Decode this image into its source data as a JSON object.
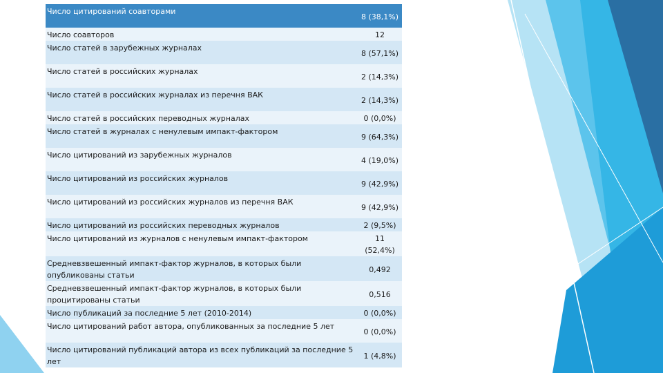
{
  "colors": {
    "header_bg": "#3b89c5",
    "row_dark": "#d4e7f5",
    "row_light": "#eaf3fa",
    "accent_light": "#8fd2f0",
    "accent_mid": "#35b6e6",
    "accent_dark": "#2a6fa3"
  },
  "rows": [
    {
      "label": "Число цитирований соавторами",
      "value": "8 (38,1%)"
    },
    {
      "label": "Число соавторов",
      "value": "12"
    },
    {
      "label": "Число статей в зарубежных журналах",
      "value": "8 (57,1%)"
    },
    {
      "label": "Число статей в российских журналах",
      "value": "2 (14,3%)"
    },
    {
      "label": "Число статей в российских журналах из перечня ВАК",
      "value": "2 (14,3%)"
    },
    {
      "label": "Число статей в российских переводных журналах",
      "value": "0 (0,0%)"
    },
    {
      "label": "Число статей в журналах с ненулевым импакт-фактором",
      "value": "9 (64,3%)"
    },
    {
      "label": "Число цитирований из зарубежных журналов",
      "value": "4 (19,0%)"
    },
    {
      "label": "Число цитирований из российских журналов",
      "value": "9 (42,9%)"
    },
    {
      "label": "Число цитирований из российских журналов из перечня ВАК",
      "value": "9 (42,9%)"
    },
    {
      "label": "Число цитирований из российских переводных журналов",
      "value": "2 (9,5%)"
    },
    {
      "label": "Число цитирований из журналов с ненулевым импакт-фактором",
      "value": "11 (52,4%)"
    },
    {
      "label": "Средневзвешенный импакт-фактор журналов, в которых были опубликованы статьи",
      "value": "0,492"
    },
    {
      "label": "Средневзвешенный импакт-фактор журналов, в которых были процитированы статьи",
      "value": "0,516"
    },
    {
      "label": "Число публикаций за последние 5 лет (2010-2014)",
      "value": "0 (0,0%)"
    },
    {
      "label": "Число цитирований работ автора, опубликованных за последние 5 лет",
      "value": "0 (0,0%)"
    },
    {
      "label": "Число цитирований публикаций автора из всех публикаций за последние 5 лет",
      "value": "1 (4,8%)"
    }
  ]
}
